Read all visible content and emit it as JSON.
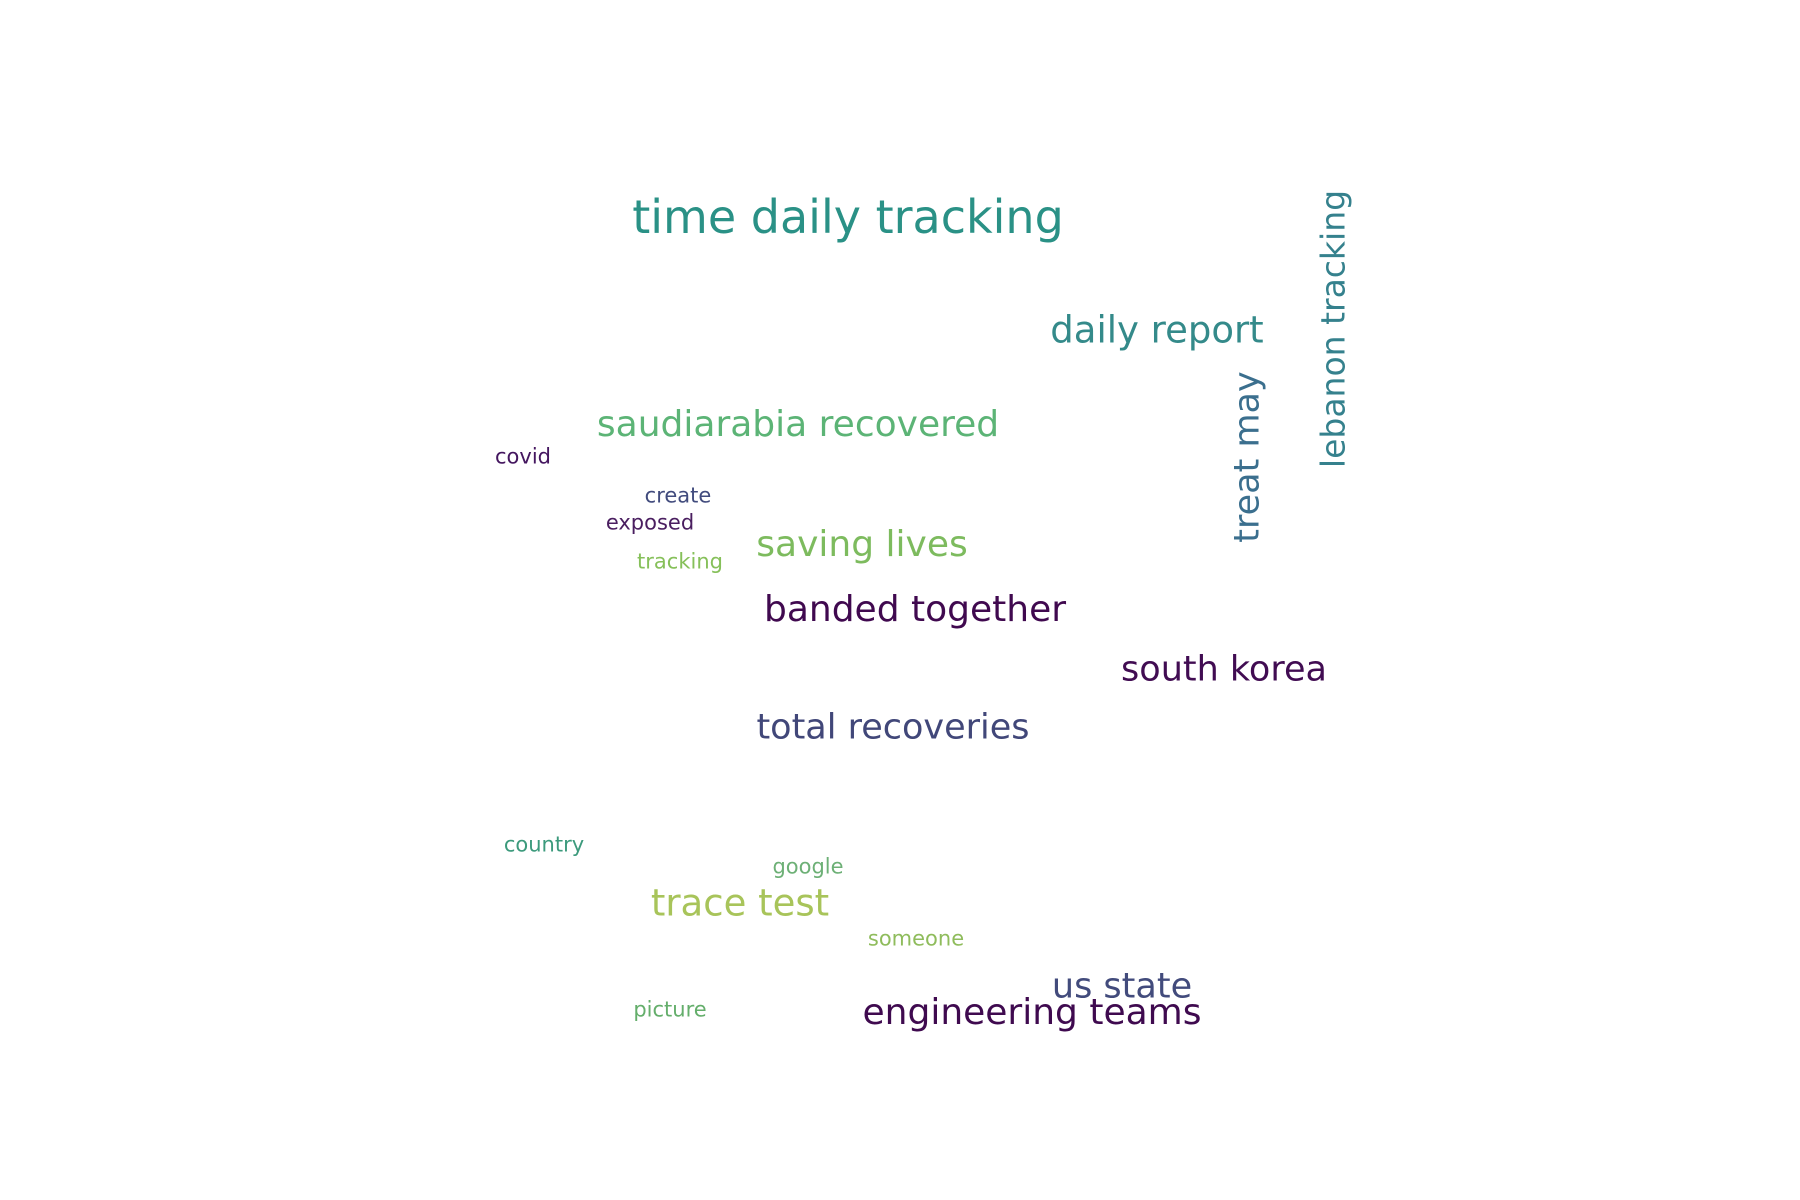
{
  "words": [
    {
      "text": "time daily tracking",
      "color": "#2a9186"
    },
    {
      "text": "lebanon tracking",
      "color": "#35818d"
    },
    {
      "text": "daily report",
      "color": "#348a8a"
    },
    {
      "text": "treat may",
      "color": "#3b6f8e"
    },
    {
      "text": "saudiarabia recovered",
      "color": "#5cb476"
    },
    {
      "text": "covid",
      "color": "#44165f"
    },
    {
      "text": "create",
      "color": "#414b7d"
    },
    {
      "text": "exposed",
      "color": "#4a1e60"
    },
    {
      "text": "saving lives",
      "color": "#7dbb5e"
    },
    {
      "text": "tracking",
      "color": "#86c05a"
    },
    {
      "text": "banded together",
      "color": "#40094f"
    },
    {
      "text": "south korea",
      "color": "#410c52"
    },
    {
      "text": "total recoveries",
      "color": "#414779"
    },
    {
      "text": "country",
      "color": "#3c9a7c"
    },
    {
      "text": "google",
      "color": "#6db076"
    },
    {
      "text": "trace test",
      "color": "#a8c45a"
    },
    {
      "text": "someone",
      "color": "#8fbc5c"
    },
    {
      "text": "us state",
      "color": "#424b7c"
    },
    {
      "text": "engineering teams",
      "color": "#3f0a4f"
    },
    {
      "text": "picture",
      "color": "#64ae6b"
    }
  ]
}
